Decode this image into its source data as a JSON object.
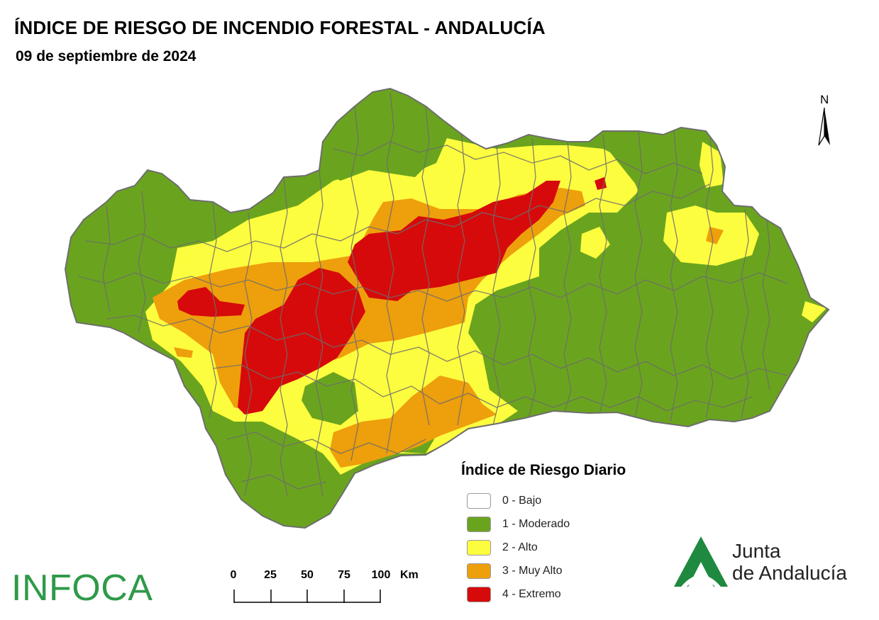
{
  "header": {
    "title": "ÍNDICE DE RIESGO DE INCENDIO FORESTAL - ANDALUCÍA",
    "date": "09 de septiembre de 2024"
  },
  "north_arrow": {
    "label": "N"
  },
  "legend": {
    "title": "Índice de Riesgo Diario",
    "items": [
      {
        "label": "0 - Bajo",
        "color": "#ffffff"
      },
      {
        "label": "1 - Moderado",
        "color": "#6aa41e"
      },
      {
        "label": "2 - Alto",
        "color": "#fdfd3f"
      },
      {
        "label": "3 - Muy Alto",
        "color": "#ee9f0c"
      },
      {
        "label": "4 - Extremo",
        "color": "#d60a0a"
      }
    ]
  },
  "scale_bar": {
    "ticks": [
      "0",
      "25",
      "50",
      "75",
      "100"
    ],
    "unit": "Km"
  },
  "brand": {
    "infoca": "INFOCA",
    "junta_line1": "Junta",
    "junta_line2": "de Andalucía",
    "junta_color": "#1f8a3f"
  },
  "map_colors": {
    "moderado": "#6aa41e",
    "alto": "#fdfd3f",
    "muy_alto": "#ee9f0c",
    "extremo": "#d60a0a",
    "borders": "#6d6d6d"
  }
}
